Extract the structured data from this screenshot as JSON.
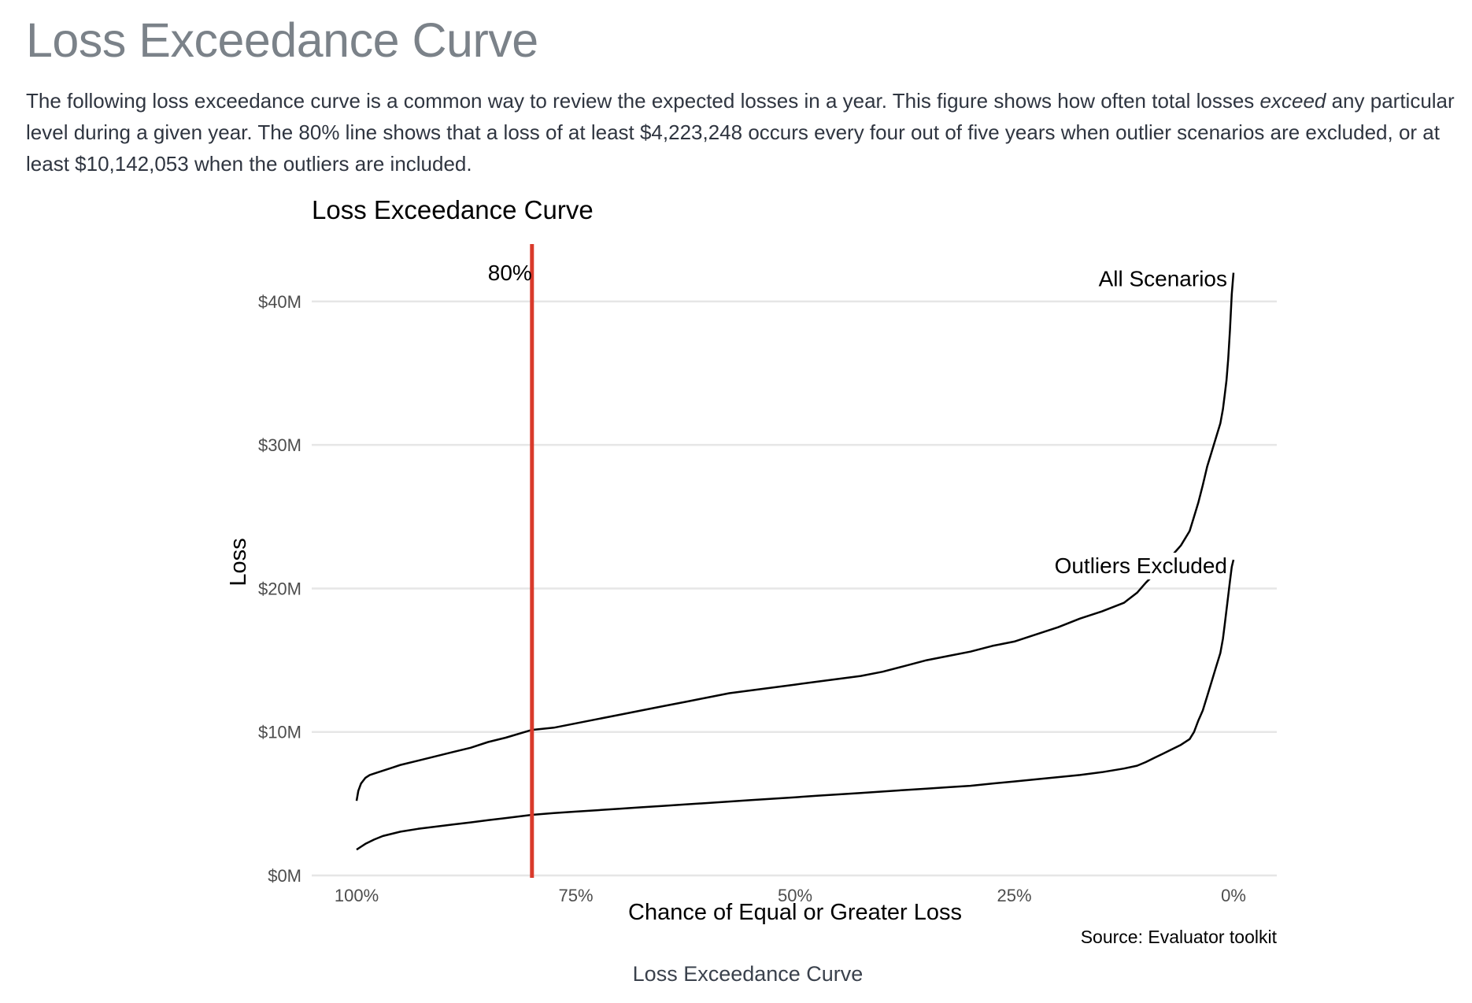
{
  "page": {
    "title": "Loss Exceedance Curve",
    "intro_part1": "The following loss exceedance curve is a common way to review the expected losses in a year. This figure shows how often total losses ",
    "intro_emphasis": "exceed",
    "intro_part2": " any particular level during a given year. The 80% line shows that a loss of at least $4,223,248 occurs every four out of five years when outlier scenarios are excluded, or at least $10,142,053 when the outliers are included.",
    "figure_caption": "Loss Exceedance Curve"
  },
  "colors": {
    "reference_line": "#d93a2b",
    "curve": "#000000",
    "grid": "#e6e6e6",
    "tick_text": "#4d4d4d"
  },
  "chart_data": {
    "type": "line",
    "title": "Loss Exceedance Curve",
    "xlabel": "Chance of Equal or Greater Loss",
    "ylabel": "Loss",
    "caption": "Source: Evaluator toolkit",
    "x_reversed": true,
    "xlim": [
      1.0,
      0.0
    ],
    "ylim": [
      0,
      44000000
    ],
    "x_ticks": [
      1.0,
      0.75,
      0.5,
      0.25,
      0.0
    ],
    "x_tick_labels": [
      "100%",
      "75%",
      "50%",
      "25%",
      "0%"
    ],
    "y_ticks": [
      0,
      10000000,
      20000000,
      30000000,
      40000000
    ],
    "y_tick_labels": [
      "$0M",
      "$10M",
      "$20M",
      "$30M",
      "$40M"
    ],
    "grid": true,
    "reference_line": {
      "x": 0.8,
      "label": "80%"
    },
    "series": [
      {
        "name": "All Scenarios",
        "x": [
          1.0,
          0.998,
          0.995,
          0.99,
          0.985,
          0.98,
          0.97,
          0.96,
          0.95,
          0.93,
          0.91,
          0.89,
          0.87,
          0.85,
          0.83,
          0.8,
          0.775,
          0.75,
          0.725,
          0.7,
          0.675,
          0.65,
          0.625,
          0.6,
          0.575,
          0.55,
          0.525,
          0.5,
          0.475,
          0.45,
          0.425,
          0.4,
          0.375,
          0.35,
          0.325,
          0.3,
          0.275,
          0.25,
          0.225,
          0.2,
          0.175,
          0.15,
          0.125,
          0.11,
          0.1,
          0.09,
          0.08,
          0.07,
          0.06,
          0.05,
          0.045,
          0.04,
          0.035,
          0.03,
          0.025,
          0.02,
          0.015,
          0.012,
          0.01,
          0.008,
          0.006,
          0.004,
          0.002,
          0.0
        ],
        "values": [
          5200000,
          5900000,
          6400000,
          6800000,
          7000000,
          7100000,
          7300000,
          7500000,
          7700000,
          8000000,
          8300000,
          8600000,
          8900000,
          9300000,
          9600000,
          10142053,
          10300000,
          10600000,
          10900000,
          11200000,
          11500000,
          11800000,
          12100000,
          12400000,
          12700000,
          12900000,
          13100000,
          13300000,
          13500000,
          13700000,
          13900000,
          14200000,
          14600000,
          15000000,
          15300000,
          15600000,
          16000000,
          16300000,
          16800000,
          17300000,
          17900000,
          18400000,
          19000000,
          19700000,
          20400000,
          21000000,
          21600000,
          22300000,
          23000000,
          24000000,
          25000000,
          26000000,
          27200000,
          28500000,
          29500000,
          30500000,
          31500000,
          32500000,
          33500000,
          34500000,
          36000000,
          38000000,
          40500000,
          42000000
        ]
      },
      {
        "name": "Outliers Excluded",
        "x": [
          1.0,
          0.995,
          0.99,
          0.98,
          0.97,
          0.96,
          0.95,
          0.93,
          0.91,
          0.89,
          0.87,
          0.85,
          0.83,
          0.8,
          0.775,
          0.75,
          0.725,
          0.7,
          0.675,
          0.65,
          0.625,
          0.6,
          0.575,
          0.55,
          0.525,
          0.5,
          0.475,
          0.45,
          0.425,
          0.4,
          0.375,
          0.35,
          0.325,
          0.3,
          0.275,
          0.25,
          0.225,
          0.2,
          0.175,
          0.15,
          0.125,
          0.11,
          0.1,
          0.09,
          0.08,
          0.07,
          0.06,
          0.05,
          0.045,
          0.04,
          0.035,
          0.03,
          0.025,
          0.02,
          0.015,
          0.012,
          0.01,
          0.008,
          0.006,
          0.004,
          0.002,
          0.0
        ],
        "values": [
          1800000,
          2000000,
          2200000,
          2500000,
          2750000,
          2900000,
          3050000,
          3250000,
          3400000,
          3550000,
          3700000,
          3850000,
          4000000,
          4223248,
          4350000,
          4450000,
          4550000,
          4650000,
          4750000,
          4850000,
          4950000,
          5050000,
          5150000,
          5250000,
          5350000,
          5450000,
          5550000,
          5650000,
          5750000,
          5850000,
          5950000,
          6050000,
          6150000,
          6250000,
          6400000,
          6550000,
          6700000,
          6850000,
          7000000,
          7200000,
          7450000,
          7650000,
          7900000,
          8200000,
          8500000,
          8800000,
          9100000,
          9500000,
          10000000,
          10800000,
          11500000,
          12500000,
          13500000,
          14500000,
          15500000,
          16500000,
          17500000,
          18500000,
          19500000,
          20500000,
          21500000,
          22000000
        ]
      }
    ]
  }
}
